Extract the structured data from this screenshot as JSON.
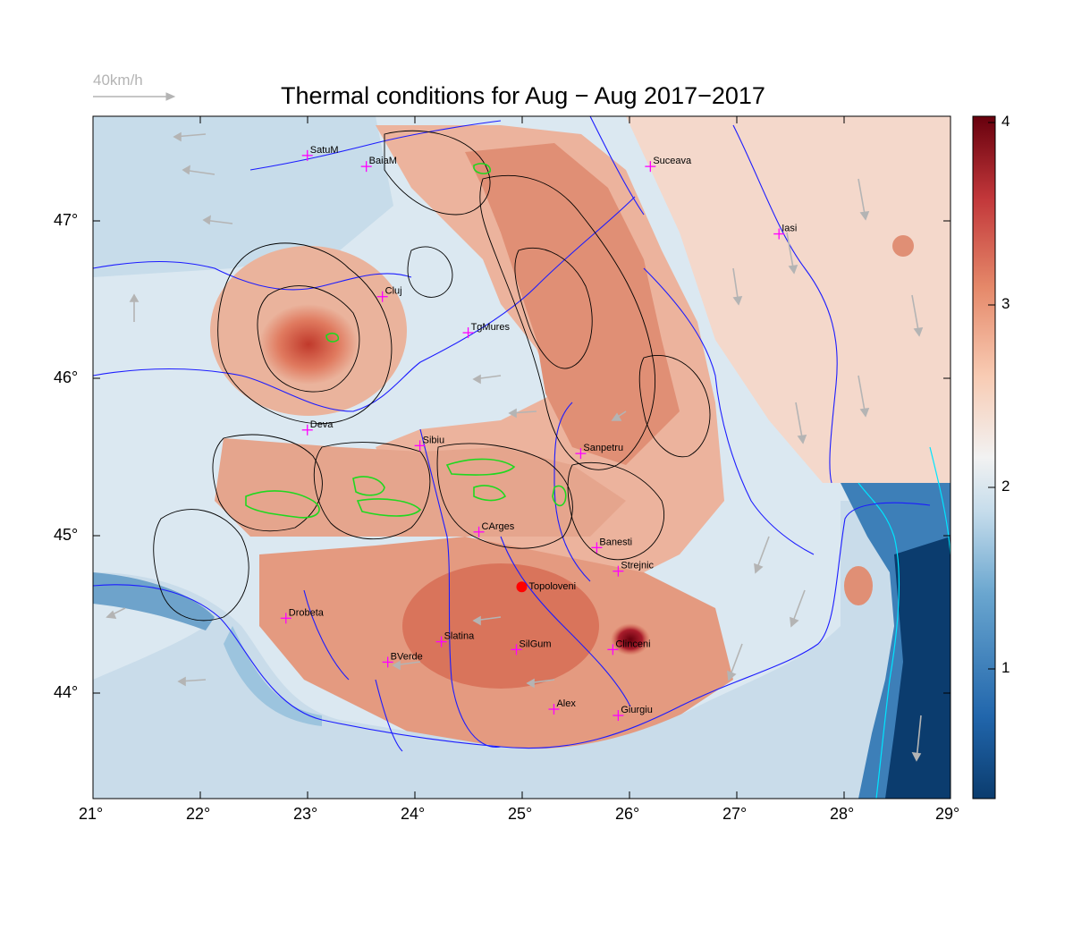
{
  "title": "Thermal conditions for Aug − Aug  2017−2017",
  "wind_reference": {
    "label": "40km/h",
    "color": "#b4b4b4"
  },
  "map": {
    "lon_range": [
      21,
      29
    ],
    "lat_range": [
      43.35,
      47.7
    ],
    "x_ticks": [
      "21°",
      "22°",
      "23°",
      "24°",
      "25°",
      "26°",
      "27°",
      "28°",
      "29°"
    ],
    "y_ticks": [
      "44°",
      "45°",
      "46°",
      "47°"
    ],
    "colors": {
      "background_low": "#0b3c6e",
      "background_mid": "#f0f2f5",
      "background_high": "#d9583f",
      "rivers": "#1c1cff",
      "contours": "#000000",
      "high_contours": "#1fd81f",
      "coast": "#00e5ff",
      "arrows": "#b4b4b4",
      "city_marker": "#ff00ff",
      "site_marker": "#ff0000"
    },
    "cities": [
      {
        "name": "SatuM",
        "lon": 23.0,
        "lat": 47.45
      },
      {
        "name": "BaiaM",
        "lon": 23.55,
        "lat": 47.38
      },
      {
        "name": "Suceava",
        "lon": 26.2,
        "lat": 47.38
      },
      {
        "name": "Iasi",
        "lon": 27.4,
        "lat": 46.95
      },
      {
        "name": "Cluj",
        "lon": 23.7,
        "lat": 46.55
      },
      {
        "name": "TgMures",
        "lon": 24.5,
        "lat": 46.32
      },
      {
        "name": "Deva",
        "lon": 23.0,
        "lat": 45.7
      },
      {
        "name": "Sibiu",
        "lon": 24.05,
        "lat": 45.6
      },
      {
        "name": "Sanpetru",
        "lon": 25.55,
        "lat": 45.55
      },
      {
        "name": "CArges",
        "lon": 24.6,
        "lat": 45.05
      },
      {
        "name": "Banesti",
        "lon": 25.7,
        "lat": 44.95
      },
      {
        "name": "Strejnic",
        "lon": 25.9,
        "lat": 44.8
      },
      {
        "name": "Drobeta",
        "lon": 22.8,
        "lat": 44.5
      },
      {
        "name": "Slatina",
        "lon": 24.25,
        "lat": 44.35
      },
      {
        "name": "SilGum",
        "lon": 24.95,
        "lat": 44.3
      },
      {
        "name": "BVerde",
        "lon": 23.75,
        "lat": 44.22
      },
      {
        "name": "Clinceni",
        "lon": 25.85,
        "lat": 44.3
      },
      {
        "name": "Alex",
        "lon": 25.3,
        "lat": 43.92
      },
      {
        "name": "Giurgiu",
        "lon": 25.9,
        "lat": 43.88
      }
    ],
    "site": {
      "name": "Topoloveni",
      "lon": 25.0,
      "lat": 44.7
    }
  },
  "colorbar": {
    "range": [
      0.3,
      4.05
    ],
    "tick_labels": [
      "1",
      "2",
      "3",
      "4"
    ],
    "colors": [
      "#0b3c6e",
      "#3b80b9",
      "#9cc6df",
      "#e6eff5",
      "#f6e3d9",
      "#f1a486",
      "#d45f4a",
      "#a91d2c",
      "#67000d"
    ]
  }
}
